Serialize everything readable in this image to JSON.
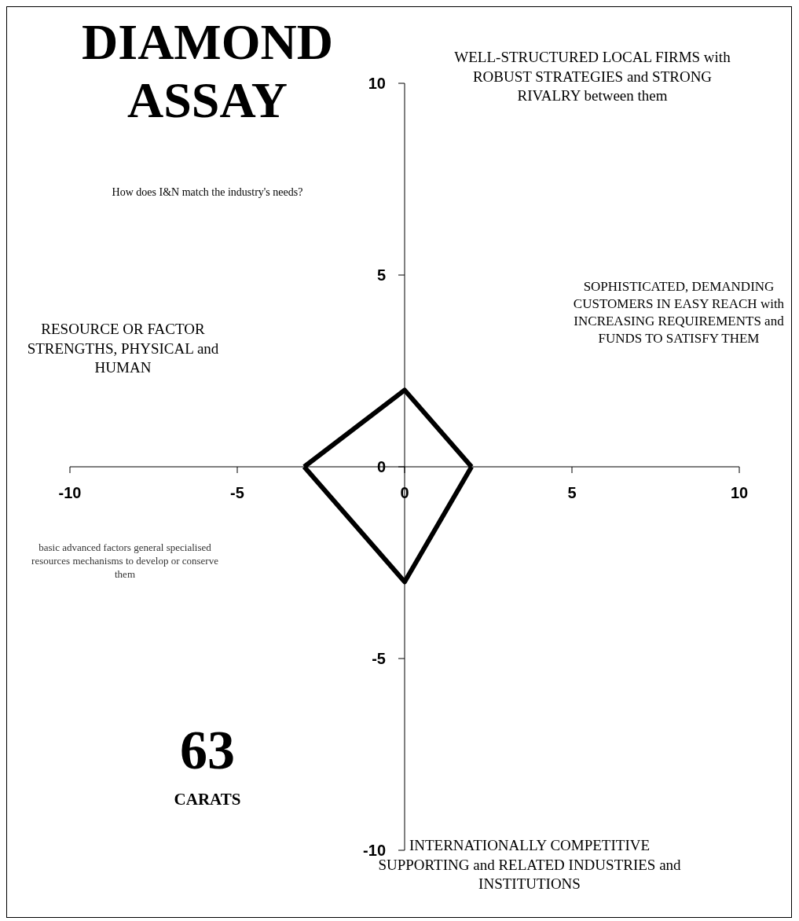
{
  "chart_data": {
    "type": "line",
    "title": "DIAMOND ASSAY",
    "subtitle": "How does I&N match the industry's needs?",
    "annotations": [
      "WELL-STRUCTURED LOCAL FIRMS with ROBUST STRATEGIES and STRONG RIVALRY between them",
      "SOPHISTICATED, DEMANDING CUSTOMERS IN EASY REACH with INCREASING REQUIREMENTS and FUNDS TO SATISFY THEM",
      "RESOURCE OR FACTOR STRENGTHS, PHYSICAL and HUMAN",
      "basic advanced factors general specialised resources mechanisms to develop or conserve them",
      "INTERNATIONALLY COMPETITIVE SUPPORTING and RELATED INDUSTRIES and INSTITUTIONS",
      "63",
      "CARATS"
    ],
    "series": [
      {
        "x": [
          -3,
          0,
          2
        ],
        "values": [
          0,
          2,
          0
        ],
        "color": "#000000"
      },
      {
        "x": [
          -3,
          0,
          2
        ],
        "values": [
          0,
          -3,
          0
        ],
        "color": "#000000"
      }
    ],
    "xlim": [
      -10,
      10
    ],
    "xticks": [
      -10,
      -5,
      0,
      5,
      10
    ],
    "ylim": [
      -10,
      10
    ],
    "yticks": [
      -10,
      -5,
      0,
      5,
      10
    ],
    "marker": "none",
    "line_style": "solid",
    "grid": false,
    "legend": false
  }
}
